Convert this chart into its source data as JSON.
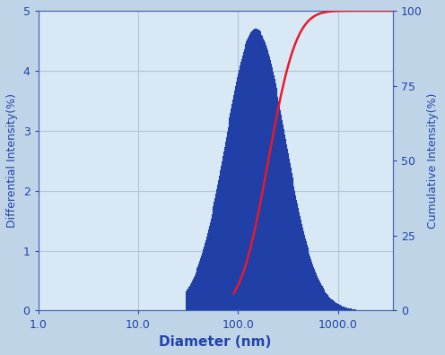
{
  "xlabel": "Diameter (nm)",
  "ylabel_left": "Differential Intensity(%)",
  "ylabel_right": "Cumulative Intensity(%)",
  "xlim_log": [
    1.0,
    3500.0
  ],
  "ylim_left": [
    0,
    5
  ],
  "ylim_right": [
    0,
    100
  ],
  "xtick_vals": [
    1.0,
    10.0,
    100.0,
    1000.0
  ],
  "xtick_labels": [
    "1.0",
    "10.0",
    "100.0",
    "1000.0"
  ],
  "yticks_left": [
    0,
    1,
    2,
    3,
    4,
    5
  ],
  "yticks_right": [
    0,
    25,
    50,
    75,
    100
  ],
  "bar_color": "#2040A8",
  "bar_peak_nm": 150,
  "bar_sigma_log": 0.3,
  "bar_start_nm": 30,
  "bar_end_nm": 1500,
  "bar_amplitude": 4.7,
  "cumulative_color": "#E8192C",
  "cumulative_start_nm": 90,
  "cumulative_median_nm": 200,
  "cumulative_sigma_log": 0.22,
  "bg_color": "#D8E8F4",
  "grid_color": "#B0C0D8",
  "axis_color": "#4466BB",
  "label_color": "#2244AA",
  "tick_color": "#2244AA",
  "xlabel_fontsize": 11,
  "ylabel_fontsize": 9,
  "tick_fontsize": 9,
  "figsize": [
    4.96,
    3.96
  ],
  "dpi": 100
}
